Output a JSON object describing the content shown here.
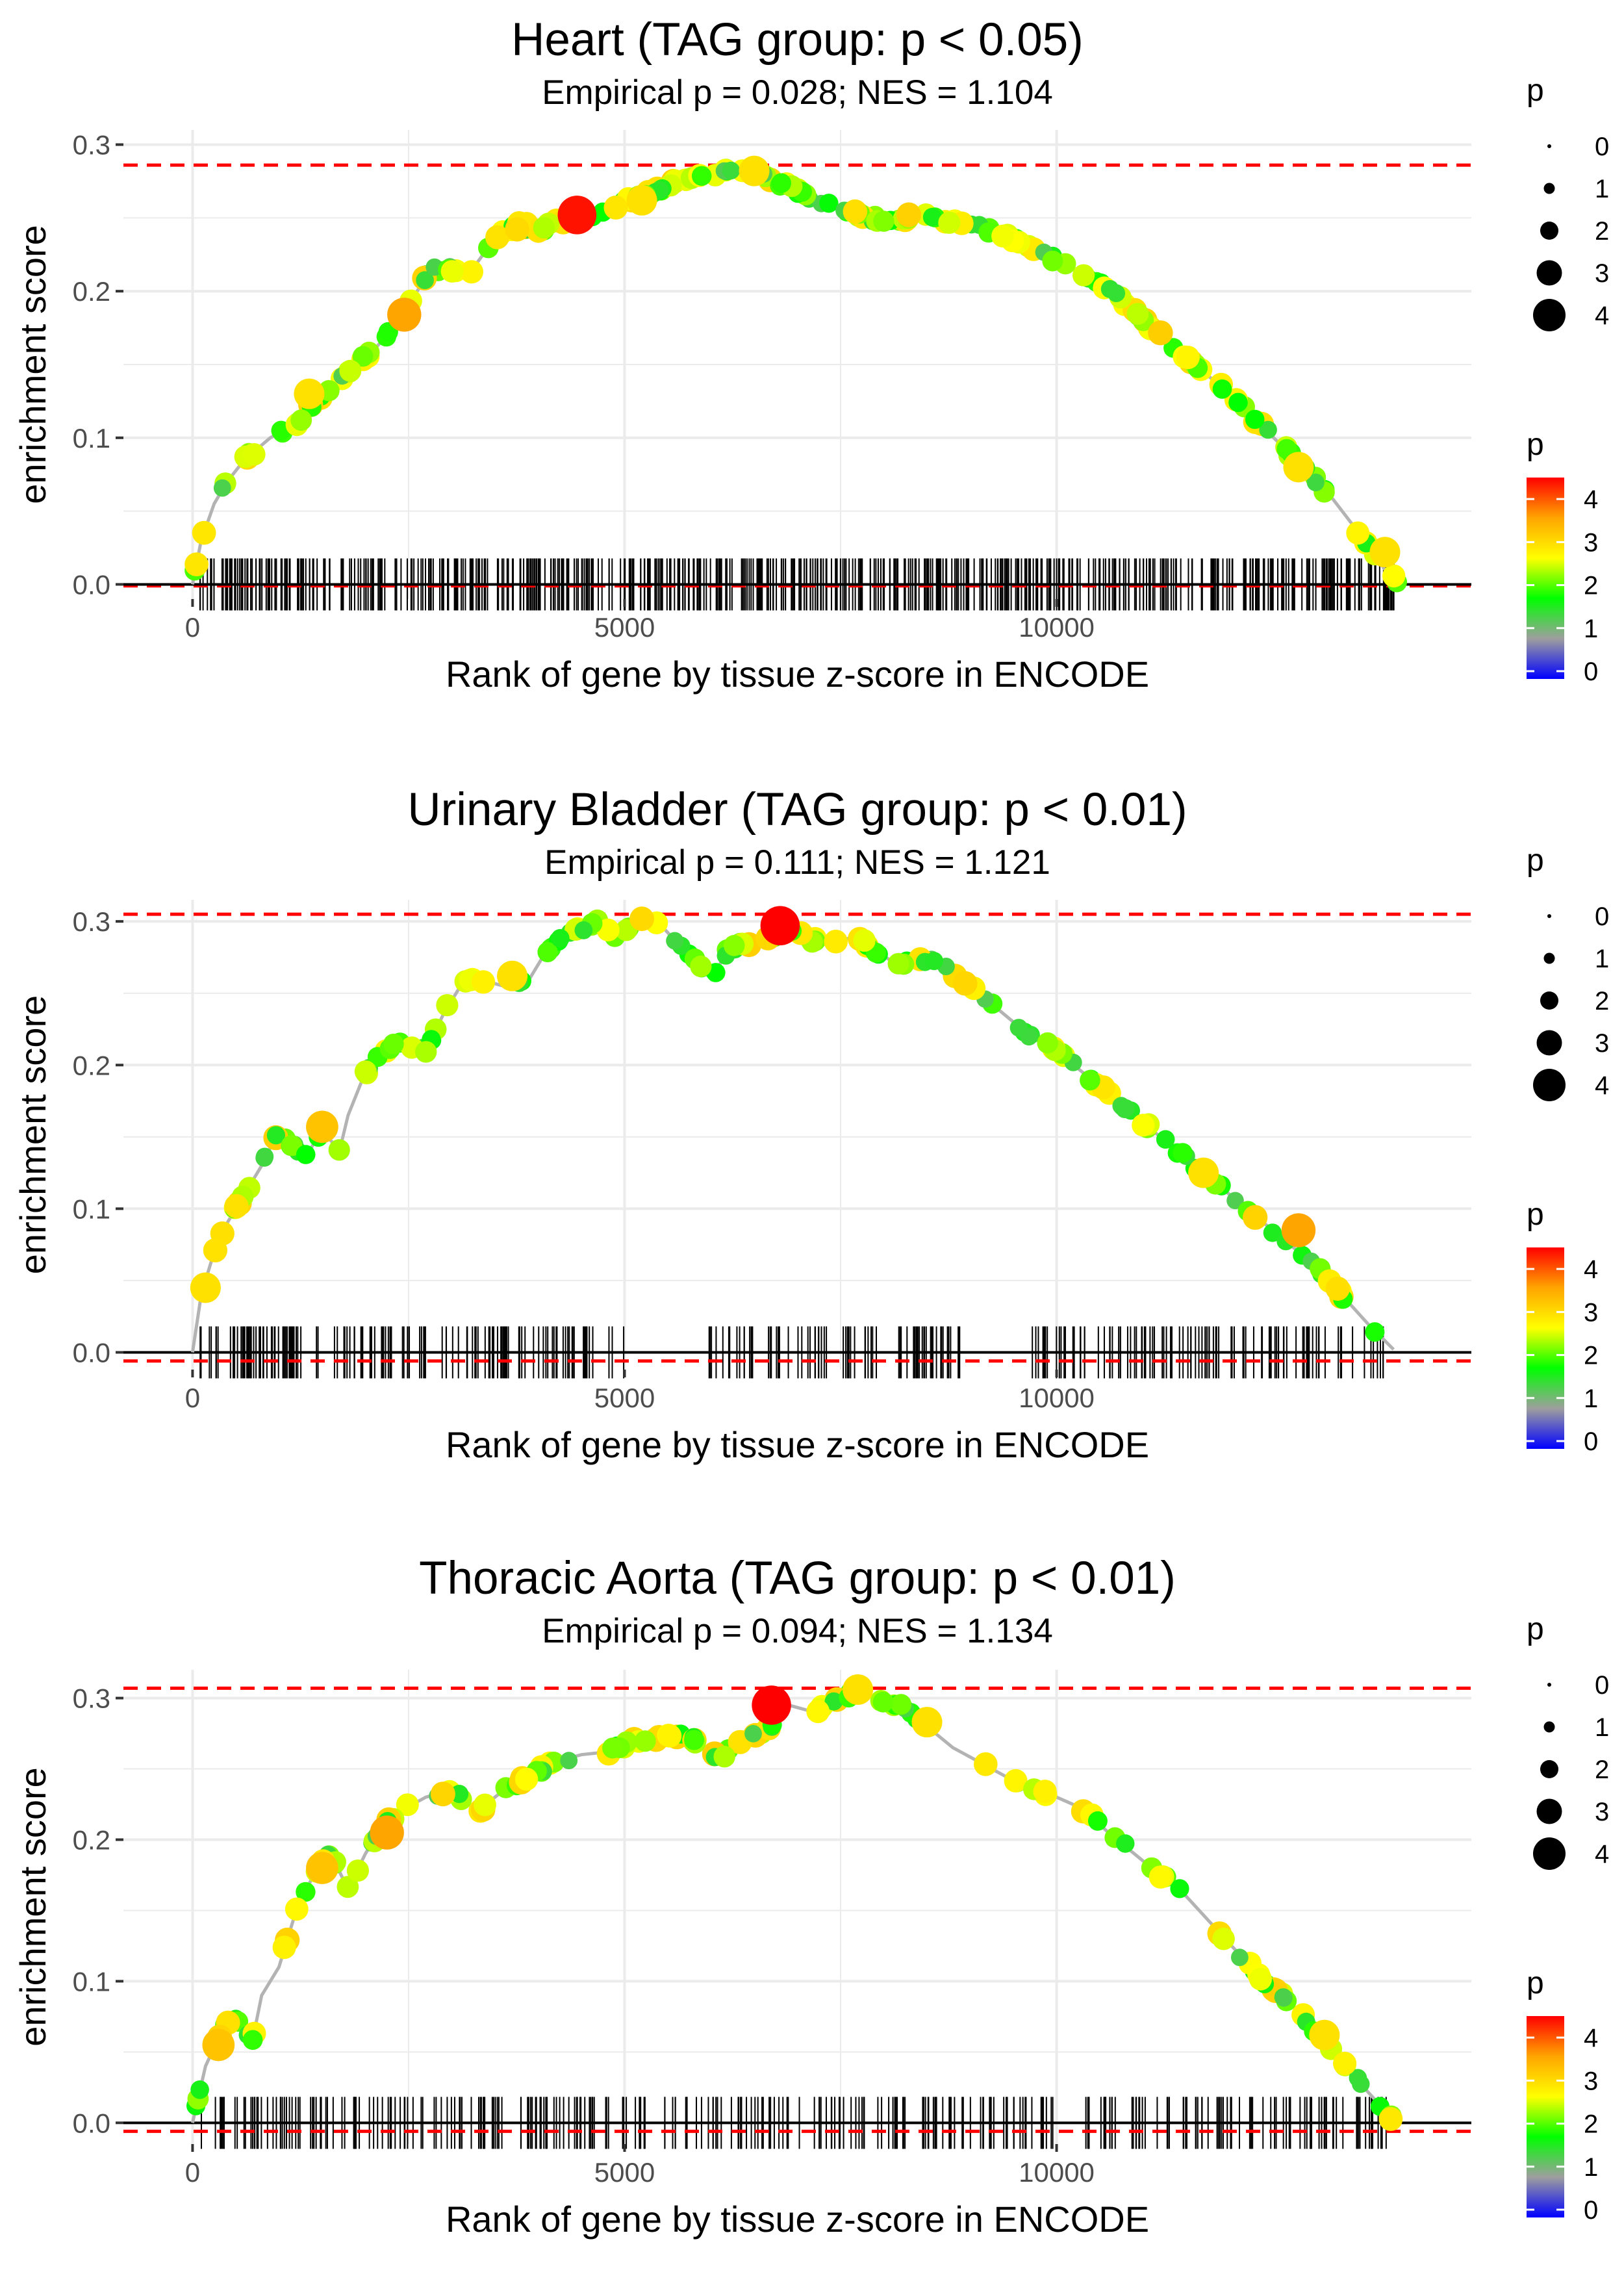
{
  "colors": {
    "grid": "#ebebeb",
    "reference_line": "#ff0000",
    "zero_line": "#000000",
    "curve_line": "#b3b3b3",
    "rug": "#000000",
    "palette": [
      "#0000ff",
      "#9e9e9e",
      "#00ff00",
      "#ffff00",
      "#ffa500",
      "#ff0000"
    ]
  },
  "chart_data": [
    {
      "type": "line",
      "title": "Heart (TAG group: p < 0.05)",
      "subtitle": "Empirical p = 0.028; NES = 1.104",
      "xlabel": "Rank of gene by tissue z-score in ENCODE",
      "ylabel": "enrichment score",
      "xlim": [
        -800,
        14800
      ],
      "ylim": [
        -0.01,
        0.31
      ],
      "x_ticks": [
        0,
        5000,
        10000
      ],
      "x_tick_labels": [
        "0",
        "5000",
        "10000"
      ],
      "y_ticks": [
        0.0,
        0.1,
        0.2,
        0.3
      ],
      "y_tick_labels": [
        "0.0",
        "0.1",
        "0.2",
        "0.3"
      ],
      "max_es_line": 0.286,
      "min_es_line": -0.001,
      "curve": {
        "x": [
          0,
          100,
          250,
          400,
          600,
          900,
          1200,
          1500,
          1800,
          2100,
          2400,
          2600,
          2750,
          3000,
          3200,
          3400,
          3600,
          3800,
          4000,
          4200,
          4400,
          4600,
          4800,
          5000,
          5200,
          5400,
          5600,
          5800,
          6000,
          6200,
          6400,
          6600,
          6800,
          7000,
          7200,
          7400,
          7600,
          7800,
          8000,
          8200,
          8400,
          8600,
          8800,
          9000,
          9300,
          9600,
          9900,
          10200,
          10500,
          10800,
          11100,
          11400,
          11700,
          12000,
          12300,
          12600,
          12900,
          13200,
          13500,
          13800,
          14000
        ],
        "y": [
          0.0,
          0.03,
          0.055,
          0.07,
          0.085,
          0.1,
          0.11,
          0.13,
          0.145,
          0.16,
          0.18,
          0.2,
          0.215,
          0.215,
          0.212,
          0.228,
          0.24,
          0.245,
          0.242,
          0.246,
          0.25,
          0.252,
          0.255,
          0.262,
          0.265,
          0.27,
          0.275,
          0.278,
          0.28,
          0.284,
          0.284,
          0.28,
          0.274,
          0.268,
          0.262,
          0.258,
          0.255,
          0.25,
          0.248,
          0.25,
          0.252,
          0.25,
          0.248,
          0.245,
          0.24,
          0.232,
          0.224,
          0.215,
          0.205,
          0.192,
          0.175,
          0.16,
          0.145,
          0.13,
          0.112,
          0.095,
          0.078,
          0.058,
          0.035,
          0.01,
          0.0
        ]
      },
      "highlight_points": [
        {
          "x": 4450,
          "y": 0.252,
          "p": 4.4
        },
        {
          "x": 2450,
          "y": 0.184,
          "p": 3.6
        },
        {
          "x": 5200,
          "y": 0.262,
          "p": 3.0
        },
        {
          "x": 1350,
          "y": 0.13,
          "p": 3.0
        },
        {
          "x": 12800,
          "y": 0.08,
          "p": 3.0
        },
        {
          "x": 13800,
          "y": 0.022,
          "p": 3.0
        },
        {
          "x": 6500,
          "y": 0.282,
          "p": 3.0
        }
      ],
      "rug": {
        "count": 600,
        "start": 80,
        "end": 13950,
        "gaps": [],
        "seed": 11
      },
      "point_density": 220,
      "point_seed": 101,
      "legend": {
        "size_title": "p",
        "size_labels": [
          "0",
          "1",
          "2",
          "3",
          "4"
        ],
        "color_title": "p",
        "color_labels": [
          "4",
          "3",
          "2",
          "1",
          "0"
        ]
      }
    },
    {
      "type": "line",
      "title": "Urinary Bladder (TAG group: p < 0.01)",
      "subtitle": "Empirical p = 0.111; NES = 1.121",
      "xlabel": "Rank of gene by tissue z-score in ENCODE",
      "ylabel": "enrichment score",
      "xlim": [
        -800,
        14800
      ],
      "ylim": [
        -0.012,
        0.315
      ],
      "x_ticks": [
        0,
        5000,
        10000
      ],
      "x_tick_labels": [
        "0",
        "5000",
        "10000"
      ],
      "y_ticks": [
        0.0,
        0.1,
        0.2,
        0.3
      ],
      "y_tick_labels": [
        "0.0",
        "0.1",
        "0.2",
        "0.3"
      ],
      "max_es_line": 0.305,
      "min_es_line": -0.006,
      "curve": {
        "x": [
          0,
          100,
          250,
          400,
          600,
          800,
          1000,
          1300,
          1500,
          1700,
          1800,
          2000,
          2200,
          2400,
          2700,
          2900,
          3100,
          3300,
          3600,
          3900,
          4100,
          4300,
          4500,
          4700,
          4900,
          5100,
          5300,
          6000,
          6200,
          6400,
          6700,
          6900,
          7100,
          7400,
          7700,
          7900,
          8100,
          8300,
          8600,
          8800,
          9100,
          9400,
          9700,
          10000,
          10300,
          10600,
          10900,
          11200,
          11500,
          11800,
          12100,
          12400,
          12700,
          13000,
          13300,
          13600,
          13900
        ],
        "y": [
          0.0,
          0.04,
          0.07,
          0.09,
          0.11,
          0.13,
          0.155,
          0.135,
          0.155,
          0.14,
          0.165,
          0.195,
          0.21,
          0.215,
          0.21,
          0.235,
          0.255,
          0.26,
          0.255,
          0.26,
          0.28,
          0.29,
          0.295,
          0.3,
          0.29,
          0.295,
          0.305,
          0.26,
          0.28,
          0.285,
          0.29,
          0.295,
          0.288,
          0.285,
          0.29,
          0.28,
          0.272,
          0.272,
          0.272,
          0.265,
          0.25,
          0.235,
          0.22,
          0.21,
          0.195,
          0.18,
          0.165,
          0.15,
          0.135,
          0.12,
          0.105,
          0.09,
          0.075,
          0.06,
          0.04,
          0.02,
          0.002
        ]
      },
      "highlight_points": [
        {
          "x": 6800,
          "y": 0.297,
          "p": 4.5
        },
        {
          "x": 12800,
          "y": 0.085,
          "p": 3.6
        },
        {
          "x": 1500,
          "y": 0.157,
          "p": 3.3
        },
        {
          "x": 150,
          "y": 0.045,
          "p": 3.0
        },
        {
          "x": 11700,
          "y": 0.125,
          "p": 3.0
        },
        {
          "x": 3700,
          "y": 0.262,
          "p": 3.0
        }
      ],
      "rug": {
        "count": 380,
        "start": 80,
        "end": 13800,
        "gaps": [
          [
            5050,
            5950
          ],
          [
            8900,
            9700
          ]
        ],
        "seed": 23
      },
      "point_density": 170,
      "point_seed": 202,
      "legend": {
        "size_title": "p",
        "size_labels": [
          "0",
          "1",
          "2",
          "3",
          "4"
        ],
        "color_title": "p",
        "color_labels": [
          "4",
          "3",
          "2",
          "1",
          "0"
        ]
      }
    },
    {
      "type": "line",
      "title": "Thoracic Aorta (TAG group: p < 0.01)",
      "subtitle": "Empirical p = 0.094; NES = 1.134",
      "xlabel": "Rank of gene by tissue z-score in ENCODE",
      "ylabel": "enrichment score",
      "xlim": [
        -800,
        14800
      ],
      "ylim": [
        -0.015,
        0.32
      ],
      "x_ticks": [
        0,
        5000,
        10000
      ],
      "x_tick_labels": [
        "0",
        "5000",
        "10000"
      ],
      "y_ticks": [
        0.0,
        0.1,
        0.2,
        0.3
      ],
      "y_tick_labels": [
        "0.0",
        "0.1",
        "0.2",
        "0.3"
      ],
      "max_es_line": 0.307,
      "min_es_line": -0.006,
      "curve": {
        "x": [
          0,
          150,
          300,
          450,
          700,
          800,
          1000,
          1200,
          1400,
          1600,
          1800,
          2000,
          2200,
          2400,
          2700,
          3000,
          3300,
          3600,
          3900,
          4200,
          4500,
          4800,
          5100,
          5400,
          5700,
          6100,
          6400,
          6700,
          6900,
          7200,
          7500,
          7700,
          7900,
          8200,
          8500,
          8800,
          9100,
          9400,
          9700,
          10000,
          10300,
          10600,
          10900,
          11200,
          11500,
          11800,
          12100,
          12400,
          12700,
          13000,
          13300,
          13600,
          13900
        ],
        "y": [
          0.0,
          0.04,
          0.06,
          0.075,
          0.06,
          0.09,
          0.11,
          0.15,
          0.175,
          0.19,
          0.165,
          0.19,
          0.21,
          0.22,
          0.23,
          0.235,
          0.22,
          0.235,
          0.245,
          0.255,
          0.26,
          0.262,
          0.27,
          0.272,
          0.275,
          0.258,
          0.27,
          0.28,
          0.295,
          0.29,
          0.3,
          0.305,
          0.3,
          0.295,
          0.28,
          0.265,
          0.255,
          0.245,
          0.238,
          0.23,
          0.222,
          0.205,
          0.19,
          0.175,
          0.16,
          0.14,
          0.12,
          0.1,
          0.085,
          0.065,
          0.045,
          0.022,
          0.002
        ]
      },
      "highlight_points": [
        {
          "x": 6700,
          "y": 0.295,
          "p": 4.5
        },
        {
          "x": 2250,
          "y": 0.205,
          "p": 3.6
        },
        {
          "x": 1500,
          "y": 0.18,
          "p": 3.3
        },
        {
          "x": 300,
          "y": 0.055,
          "p": 3.3
        },
        {
          "x": 8500,
          "y": 0.283,
          "p": 3.0
        },
        {
          "x": 13100,
          "y": 0.062,
          "p": 3.0
        },
        {
          "x": 7700,
          "y": 0.306,
          "p": 3.0
        }
      ],
      "rug": {
        "count": 330,
        "start": 80,
        "end": 13850,
        "gaps": [],
        "seed": 37
      },
      "point_density": 150,
      "point_seed": 303,
      "legend": {
        "size_title": "p",
        "size_labels": [
          "0",
          "1",
          "2",
          "3",
          "4"
        ],
        "color_title": "p",
        "color_labels": [
          "4",
          "3",
          "2",
          "1",
          "0"
        ]
      }
    }
  ]
}
